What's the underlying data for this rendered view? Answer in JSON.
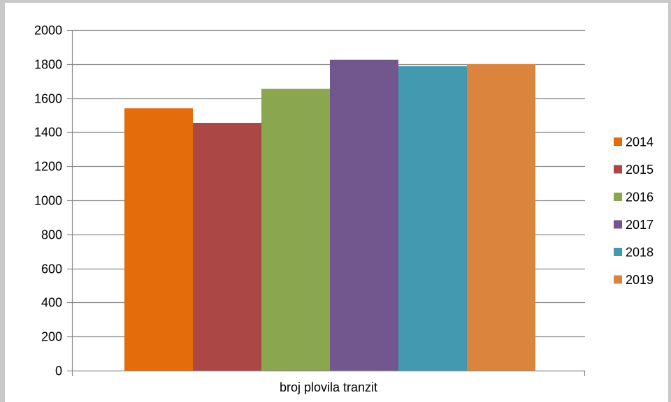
{
  "chart_data": {
    "type": "bar",
    "categories": [
      "broj plovila tranzit"
    ],
    "series": [
      {
        "name": "2014",
        "values": [
          1540
        ],
        "color": "#E46C0A"
      },
      {
        "name": "2015",
        "values": [
          1455
        ],
        "color": "#AB4744"
      },
      {
        "name": "2016",
        "values": [
          1655
        ],
        "color": "#8AA64E"
      },
      {
        "name": "2017",
        "values": [
          1825
        ],
        "color": "#71578E"
      },
      {
        "name": "2018",
        "values": [
          1788
        ],
        "color": "#4299B0"
      },
      {
        "name": "2019",
        "values": [
          1800
        ],
        "color": "#DB843D"
      }
    ],
    "y_ticks": [
      "0",
      "200",
      "400",
      "600",
      "800",
      "1000",
      "1200",
      "1400",
      "1600",
      "1800",
      "2000"
    ],
    "ylim": [
      0,
      2000
    ],
    "title": "",
    "xlabel": "",
    "ylabel": "",
    "grid": true,
    "legend_position": "right"
  }
}
